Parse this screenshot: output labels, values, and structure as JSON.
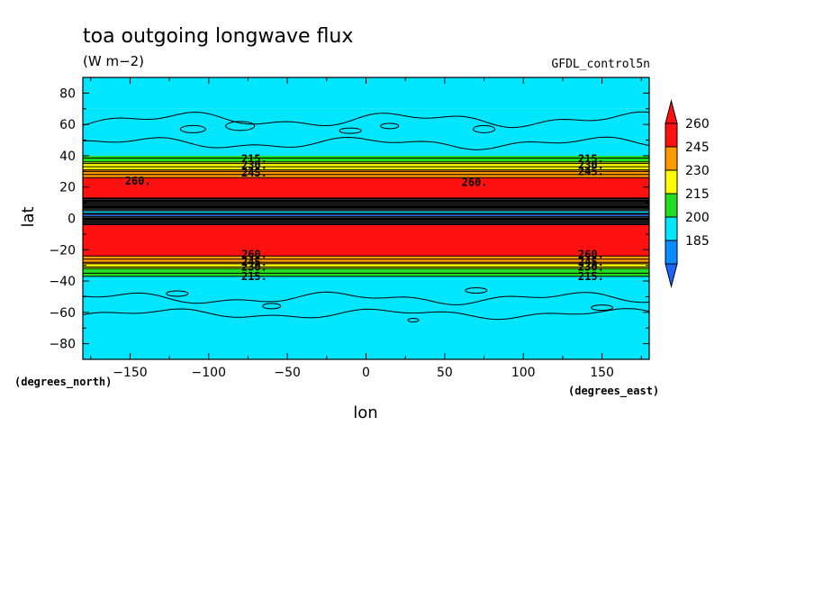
{
  "chart_data": {
    "type": "heatmap",
    "title": "toa outgoing longwave flux",
    "units": "(W m−2)",
    "source": "GFDL_control5n",
    "xlabel": "lon",
    "ylabel": "lat",
    "x_units": "(degrees_east)",
    "y_units": "(degrees_north)",
    "xlim": [
      -180,
      180
    ],
    "ylim": [
      -90,
      90
    ],
    "x_ticks": [
      -150,
      -100,
      -50,
      0,
      50,
      100,
      150
    ],
    "y_ticks": [
      80,
      60,
      40,
      20,
      0,
      -20,
      -40,
      -60,
      -80
    ],
    "x_tick_labels": [
      "−150",
      "−100",
      "−50",
      "0",
      "50",
      "100",
      "150"
    ],
    "y_tick_labels": [
      "80",
      "60",
      "40",
      "20",
      "0",
      "−20",
      "−40",
      "−60",
      "−80"
    ],
    "colorbar": {
      "levels": [
        185,
        200,
        215,
        230,
        245,
        260
      ],
      "labels": [
        "185",
        "200",
        "215",
        "230",
        "245",
        "260"
      ],
      "colors": [
        "#0a8cff",
        "#00e6ff",
        "#22dd22",
        "#ffff00",
        "#ff9900",
        "#ff1111"
      ],
      "under_color": "#1e64ff",
      "over_color": "#ff1111"
    },
    "latitude_bands": [
      {
        "lat": [
          70,
          90
        ],
        "level": "200-215"
      },
      {
        "lat": [
          40,
          70
        ],
        "level": "200-215"
      },
      {
        "lat": [
          36,
          40
        ],
        "level": "215-230"
      },
      {
        "lat": [
          31,
          36
        ],
        "level": "230-245"
      },
      {
        "lat": [
          26,
          31
        ],
        "level": "245-260"
      },
      {
        "lat": [
          13,
          26
        ],
        "level": ">260"
      },
      {
        "lat": [
          -4,
          13
        ],
        "level": "185-215"
      },
      {
        "lat": [
          -24,
          -4
        ],
        "level": ">260"
      },
      {
        "lat": [
          -29,
          -24
        ],
        "level": "245-260"
      },
      {
        "lat": [
          -32,
          -29
        ],
        "level": "230-245"
      },
      {
        "lat": [
          -37,
          -32
        ],
        "level": "215-230"
      },
      {
        "lat": [
          -90,
          -37
        ],
        "level": "200-215"
      }
    ],
    "contour_labels": [
      {
        "text": "215.",
        "lon": -71,
        "lat": 38
      },
      {
        "text": "230.",
        "lon": -71,
        "lat": 34
      },
      {
        "text": "245.",
        "lon": -71,
        "lat": 29
      },
      {
        "text": "260.",
        "lon": -145,
        "lat": 24
      },
      {
        "text": "215.",
        "lon": 143,
        "lat": 38
      },
      {
        "text": "230.",
        "lon": 143,
        "lat": 34
      },
      {
        "text": "245.",
        "lon": 143,
        "lat": 30
      },
      {
        "text": "260.",
        "lon": 69,
        "lat": 23
      },
      {
        "text": "260.",
        "lon": -71,
        "lat": -23
      },
      {
        "text": "245.",
        "lon": -71,
        "lat": -28
      },
      {
        "text": "230.",
        "lon": -71,
        "lat": -31
      },
      {
        "text": "215.",
        "lon": -71,
        "lat": -37
      },
      {
        "text": "260.",
        "lon": 143,
        "lat": -23
      },
      {
        "text": "245.",
        "lon": 143,
        "lat": -28
      },
      {
        "text": "230.",
        "lon": 143,
        "lat": -31
      },
      {
        "text": "215.",
        "lon": 143,
        "lat": -37
      }
    ]
  }
}
